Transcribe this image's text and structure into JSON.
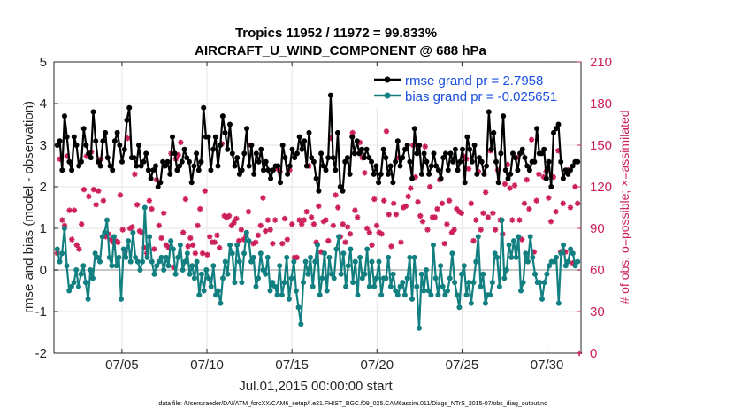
{
  "chart_data": {
    "type": "line",
    "title": "Tropics 11952 / 11972 = 99.833%",
    "subtitle": "AIRCRAFT_U_WIND_COMPONENT @ 688 hPa",
    "xlabel": "Jul.01,2015 00:00:00 start",
    "ylabel_left": "rmse and bias (model - observation)",
    "ylabel_right": "# of obs: o=possible; ×=assimilated",
    "footer": "data file: /Users/raeder/DAI/ATM_forcXX/CAM6_setup/f.e21.FHIST_BGC.f09_025.CAM6assim.011/Diags_NTrS_2015-07/obs_diag_output.nc",
    "xlim": [
      1,
      32
    ],
    "ylim_left": [
      -2,
      5
    ],
    "ylim_right": [
      0,
      210
    ],
    "x_ticks": [
      5,
      10,
      15,
      20,
      25,
      30
    ],
    "x_tick_labels": [
      "07/05",
      "07/10",
      "07/15",
      "07/20",
      "07/25",
      "07/30"
    ],
    "y_ticks_left": [
      -2,
      -1,
      0,
      1,
      2,
      3,
      4,
      5
    ],
    "y_tick_labels_left": [
      "-2",
      "-1",
      "0",
      "1",
      "2",
      "3",
      "4",
      "5"
    ],
    "y_ticks_right": [
      0,
      30,
      60,
      90,
      120,
      150,
      180,
      210
    ],
    "y_tick_labels_right": [
      "0",
      "30",
      "60",
      "90",
      "120",
      "150",
      "180",
      "210"
    ],
    "grid": true,
    "legend_position": "top-right",
    "colors": {
      "rmse": "#000000",
      "bias": "#127f80",
      "obs": "#cc1f5a",
      "zero_line": "#c8c8c8",
      "legend_text": "#1a4fe0"
    },
    "series": [
      {
        "name": "rmse grand pr = 2.7958",
        "values": [
          3.0,
          3.1,
          2.4,
          3.7,
          3.2,
          2.6,
          2.4,
          3.2,
          3.0,
          2.5,
          2.6,
          3.4,
          3.0,
          2.8,
          2.7,
          3.8,
          3.1,
          2.6,
          2.5,
          3.1,
          3.3,
          2.7,
          2.5,
          2.4,
          3.1,
          3.3,
          3.0,
          2.6,
          2.9,
          3.6,
          3.9,
          2.7,
          2.7,
          2.5,
          3.0,
          2.5,
          2.6,
          2.8,
          2.4,
          2.2,
          2.4,
          2.5,
          2.0,
          2.1,
          2.6,
          2.5,
          2.6,
          2.3,
          3.2,
          2.8,
          2.4,
          2.5,
          2.6,
          2.9,
          2.7,
          2.6,
          2.1,
          2.5,
          2.8,
          2.4,
          2.6,
          3.9,
          3.2,
          3.2,
          2.4,
          2.9,
          3.2,
          2.5,
          3.0,
          3.7,
          3.3,
          2.9,
          3.5,
          2.8,
          2.5,
          2.7,
          2.3,
          2.4,
          2.8,
          3.4,
          2.5,
          3.0,
          2.3,
          2.8,
          2.6,
          2.9,
          2.4,
          2.6,
          2.4,
          2.2,
          2.4,
          2.5,
          2.5,
          2.1,
          3.0,
          2.7,
          2.3,
          2.5,
          2.9,
          2.7,
          2.8,
          3.2,
          2.9,
          3.1,
          2.5,
          3.3,
          2.7,
          2.6,
          2.2,
          1.9,
          2.8,
          2.5,
          2.4,
          2.7,
          4.2,
          2.7,
          2.4,
          3.3,
          2.0,
          1.9,
          2.6,
          2.7,
          2.3,
          3.2,
          2.8,
          3.1,
          2.8,
          2.9,
          2.7,
          2.9,
          2.7,
          2.6,
          2.3,
          2.5,
          2.1,
          2.3,
          2.9,
          2.7,
          2.3,
          2.5,
          2.1,
          2.6,
          3.1,
          2.5,
          2.7,
          2.9,
          3.0,
          2.6,
          2.2,
          3.4,
          2.8,
          3.0,
          2.3,
          2.8,
          2.6,
          2.3,
          2.5,
          2.8,
          2.5,
          2.4,
          2.2,
          2.7,
          2.8,
          2.4,
          2.8,
          2.6,
          2.9,
          2.4,
          2.6,
          2.9,
          2.1,
          3.2,
          2.9,
          2.6,
          3.0,
          2.3,
          2.7,
          2.6,
          2.3,
          2.5,
          3.8,
          2.9,
          3.3,
          2.6,
          2.1,
          2.8,
          3.7,
          2.4,
          2.2,
          2.3,
          2.8,
          2.7,
          2.4,
          2.8,
          2.9,
          2.7,
          2.5,
          2.4,
          2.6,
          2.6,
          3.4,
          2.8,
          2.8,
          2.9,
          2.2,
          2.6,
          2.0,
          3.3,
          3.4,
          3.5,
          2.6,
          2.2,
          2.4,
          2.3,
          2.4,
          2.5,
          2.6,
          2.6
        ]
      },
      {
        "name": "bias grand pr = -0.025651",
        "values": [
          0.5,
          0.2,
          0.4,
          1.0,
          0.1,
          -0.5,
          -0.4,
          -0.3,
          0.0,
          -0.4,
          -0.1,
          0.1,
          -0.3,
          -0.7,
          0.0,
          -0.2,
          0.4,
          0.3,
          0.2,
          0.8,
          0.9,
          1.2,
          0.3,
          0.1,
          0.8,
          0.1,
          0.3,
          -0.7,
          0.5,
          0.3,
          0.7,
          0.2,
          0.9,
          0.3,
          0.2,
          0.0,
          0.2,
          1.5,
          0.3,
          0.8,
          0.2,
          -0.1,
          0.1,
          0.2,
          0.3,
          0.0,
          0.3,
          0.1,
          0.7,
          0.5,
          -0.1,
          0.3,
          0.6,
          0.0,
          0.2,
          0.4,
          -0.1,
          0.1,
          -0.2,
          0.2,
          -0.6,
          -0.1,
          -0.5,
          0.0,
          -0.2,
          -0.4,
          0.1,
          -0.6,
          -0.5,
          -0.8,
          -0.2,
          0.2,
          -0.1,
          0.6,
          0.4,
          -0.3,
          0.6,
          0.2,
          -0.3,
          0.4,
          0.9,
          0.7,
          0.2,
          0.3,
          -0.4,
          -0.2,
          0.4,
          0.0,
          -0.1,
          0.3,
          -0.5,
          -0.3,
          -0.4,
          -0.6,
          0.1,
          -0.6,
          -0.3,
          0.3,
          -0.7,
          -0.2,
          0.2,
          -0.5,
          -0.9,
          -1.3,
          -0.3,
          0.2,
          -0.1,
          0.3,
          -0.4,
          0.2,
          0.6,
          -0.6,
          -0.2,
          0.4,
          -0.5,
          0.3,
          -0.1,
          -0.2,
          0.5,
          0.8,
          -0.1,
          0.4,
          -0.4,
          0.1,
          0.5,
          -0.3,
          0.2,
          -0.6,
          0.3,
          -0.2,
          -0.1,
          0.5,
          -0.4,
          0.2,
          -0.4,
          -0.2,
          0.2,
          -0.6,
          -0.2,
          -0.2,
          0.3,
          -0.4,
          -0.1,
          -0.5,
          -0.6,
          -0.4,
          -0.3,
          -0.6,
          -0.2,
          0.3,
          -0.7,
          0.3,
          -0.4,
          -1.4,
          -0.1,
          -0.5,
          0.0,
          -0.5,
          -0.6,
          0.6,
          -0.2,
          -0.6,
          0.1,
          -0.4,
          -0.6,
          -0.5,
          -0.2,
          0.4,
          -0.3,
          -0.6,
          -0.9,
          -0.1,
          0.1,
          -0.6,
          -0.3,
          -0.8,
          -0.3,
          0.2,
          0.8,
          -0.4,
          -0.1,
          -0.8,
          -0.6,
          -0.6,
          -0.3,
          0.4,
          0.3,
          -0.4,
          1.2,
          -0.2,
          0.0,
          0.6,
          0.3,
          0.7,
          0.3,
          0.8,
          -0.5,
          -0.3,
          0.4,
          0.2,
          0.8,
          0.3,
          -0.1,
          -0.3,
          -0.3,
          -0.7,
          -0.3,
          -0.1,
          0.1,
          0.2,
          0.2,
          0.3,
          -0.8,
          0.4,
          0.6,
          0.1,
          0.2,
          0.5,
          0.4,
          0.1,
          0.2
        ]
      },
      {
        "name": "# of obs (possible / assimilated)",
        "values": [
          72,
          140,
          96,
          92,
          142,
          103,
          82,
          103,
          78,
          75,
          93,
          118,
          142,
          113,
          145,
          118,
          107,
          117,
          140,
          110,
          84,
          86,
          82,
          80,
          81,
          80,
          114,
          89,
          73,
          155,
          90,
          91,
          129,
          107,
          88,
          87,
          76,
          72,
          110,
          104,
          75,
          125,
          92,
          83,
          101,
          78,
          76,
          144,
          62,
          140,
          143,
          152,
          87,
          111,
          77,
          83,
          78,
          72,
          92,
          104,
          72,
          117,
          71,
          84,
          80,
          80,
          85,
          76,
          151,
          99,
          98,
          99,
          92,
          94,
          97,
          81,
          89,
          82,
          85,
          102,
          150,
          79,
          80,
          85,
          92,
          112,
          88,
          96,
          89,
          79,
          96,
          133,
          131,
          79,
          97,
          82,
          132,
          93,
          69,
          69,
          96,
          93,
          96,
          102,
          135,
          98,
          93,
          80,
          106,
          73,
          95,
          96,
          81,
          155,
          92,
          114,
          105,
          84,
          93,
          80,
          91,
          86,
          159,
          103,
          98,
          152,
          141,
          130,
          90,
          87,
          78,
          111,
          92,
          87,
          86,
          110,
          160,
          100,
          77,
          108,
          100,
          141,
          80,
          105,
          106,
          113,
          119,
          150,
          127,
          109,
          99,
          95,
          149,
          89,
          120,
          98,
          98,
          104,
          125,
          108,
          79,
          93,
          110,
          87,
          89,
          104,
          102,
          101,
          142,
          140,
          133,
          108,
          81,
          96,
          131,
          89,
          101,
          116,
          98,
          146,
          101,
          89,
          132,
          96,
          86,
          122,
          136,
          119,
          96,
          121,
          141,
          96,
          82,
          108,
          125,
          104,
          154,
          73,
          110,
          129,
          180,
          127,
          131,
          112,
          95,
          127,
          102,
          146,
          73,
          108,
          73,
          132,
          105,
          65,
          120,
          108
        ]
      }
    ],
    "legend": [
      {
        "label": "rmse grand pr = 2.7958"
      },
      {
        "label": "bias grand pr = -0.025651"
      }
    ]
  }
}
